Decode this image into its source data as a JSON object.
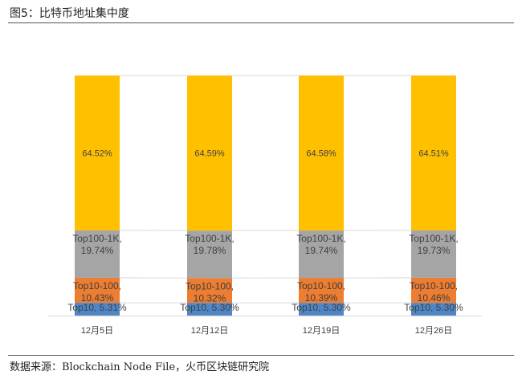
{
  "figure_title": "图5：比特币地址集中度",
  "source_note": "数据来源：Blockchain Node File，火币区块链研究院",
  "colors": {
    "top10": "#4f86c6",
    "top10_100": "#ed7d31",
    "top100_1k": "#a5a5a5",
    "rest": "#ffc000",
    "text": "#404040",
    "label_top_value": "#404040",
    "gridline": "#d9d9d9"
  },
  "chart_data": {
    "type": "bar",
    "stacked": true,
    "categories": [
      "12月5日",
      "12月12日",
      "12月19日",
      "12月26日"
    ],
    "series": [
      {
        "name": "Top10",
        "values": [
          5.31,
          5.3,
          5.3,
          5.3
        ],
        "labels": [
          "Top10, 5.31%",
          "Top10, 5.30%",
          "Top10, 5.30%",
          "Top10, 5.30%"
        ]
      },
      {
        "name": "Top10-100",
        "values": [
          10.43,
          10.32,
          10.39,
          10.46
        ],
        "labels": [
          "Top10-100, 10.43%",
          "Top10-100, 10.32%",
          "Top10-100, 10.39%",
          "Top10-100, 10.46%"
        ]
      },
      {
        "name": "Top100-1K",
        "values": [
          19.74,
          19.78,
          19.74,
          19.73
        ],
        "labels": [
          "Top100-1K, 19.74%",
          "Top100-1K, 19.78%",
          "Top100-1K, 19.74%",
          "Top100-1K, 19.73%"
        ]
      },
      {
        "values": [
          64.52,
          64.59,
          64.58,
          64.51
        ],
        "labels": [
          "64.52%",
          "64.59%",
          "64.58%",
          "64.51%"
        ]
      }
    ],
    "ylim": [
      0,
      100
    ],
    "grid": true,
    "legend": "none"
  }
}
